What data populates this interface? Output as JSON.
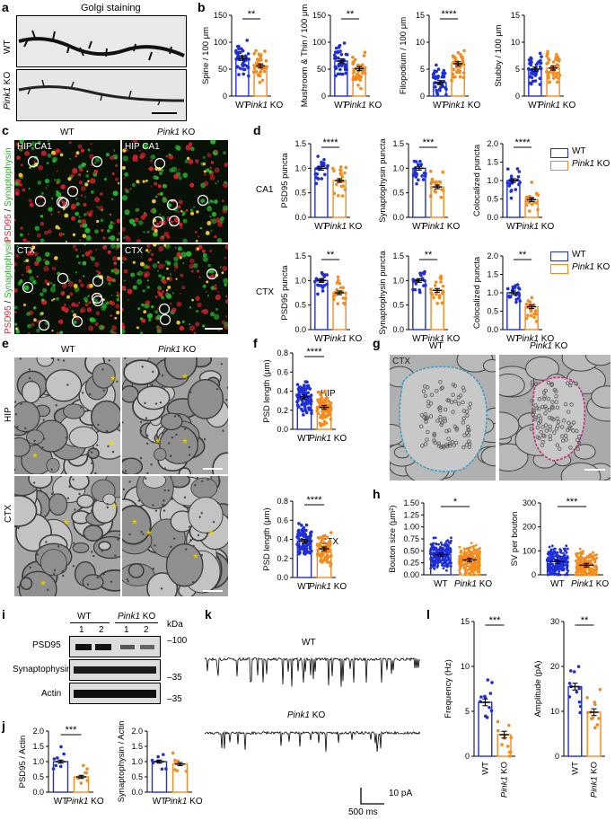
{
  "colors": {
    "wt": "#1f2fd6",
    "ko": "#f28c1e",
    "red": "#e0262e",
    "green": "#2bb02b",
    "asterisk": "#f5d800"
  },
  "panels": [
    "a",
    "b",
    "c",
    "d",
    "e",
    "f",
    "g",
    "h",
    "i",
    "j",
    "k",
    "l"
  ],
  "a": {
    "title": "Golgi staining",
    "wt": "WT",
    "ko_gene": "Pink1",
    "ko_suffix": "KO"
  },
  "c": {
    "wt": "WT",
    "ko_gene": "Pink1",
    "ko_suffix": "KO",
    "hip": "HIP CA1",
    "ctx": "CTX",
    "side_red": "PSD95",
    "side_sep": " / ",
    "side_green": "Synaptophysin"
  },
  "e": {
    "wt": "WT",
    "ko_gene": "Pink1",
    "ko_suffix": "KO",
    "hip": "HIP",
    "ctx": "CTX"
  },
  "g": {
    "wt": "WT",
    "ko_gene": "Pink1",
    "ko_suffix": "KO",
    "ctx": "CTX"
  },
  "d": {
    "row1": "CA1",
    "row2": "CTX"
  },
  "f": {
    "row1": "HIP",
    "row2": "CTX"
  },
  "i": {
    "kda": "kDa",
    "wt": "WT",
    "ko_gene": "Pink1",
    "ko_suffix": "KO",
    "lanes": [
      "1",
      "2",
      "1",
      "2"
    ],
    "rows": [
      "PSD95",
      "Synaptophysin",
      "Actin"
    ],
    "markers": [
      "100",
      "35",
      "35"
    ]
  },
  "k": {
    "wt": "WT",
    "ko_gene": "Pink1",
    "ko_suffix": "KO",
    "scale_y": "10 pA",
    "scale_x": "500 ms"
  },
  "legend": {
    "wt": "WT",
    "ko": "Pink1 KO"
  },
  "chart_data": [
    {
      "id": "b1",
      "type": "bar",
      "ylabel": "Spine / 100 μm",
      "categories": [
        "WT",
        "Pink1 KO"
      ],
      "values": [
        70,
        56
      ],
      "ylim": [
        0,
        150
      ],
      "yticks": [
        0,
        50,
        100,
        150
      ],
      "sig": "**"
    },
    {
      "id": "b2",
      "type": "bar",
      "ylabel": "Mushroom & Thin / 100 μm",
      "categories": [
        "WT",
        "Pink1 KO"
      ],
      "values": [
        65,
        51
      ],
      "ylim": [
        0,
        150
      ],
      "yticks": [
        0,
        50,
        100,
        150
      ],
      "sig": "**"
    },
    {
      "id": "b3",
      "type": "bar",
      "ylabel": "Filopodium / 100 μm",
      "categories": [
        "WT",
        "Pink1 KO"
      ],
      "values": [
        2.5,
        6.0
      ],
      "ylim": [
        0,
        15
      ],
      "yticks": [
        0,
        5,
        10,
        15
      ],
      "sig": "****"
    },
    {
      "id": "b4",
      "type": "bar",
      "ylabel": "Stubby / 100 μm",
      "categories": [
        "WT",
        "Pink1 KO"
      ],
      "values": [
        5.0,
        5.2
      ],
      "ylim": [
        0,
        15
      ],
      "yticks": [
        0,
        5,
        10,
        15
      ],
      "sig": ""
    },
    {
      "id": "d1",
      "type": "bar",
      "ylabel": "PSD95 puncta",
      "categories": [
        "WT",
        "Pink1 KO"
      ],
      "values": [
        1.0,
        0.75
      ],
      "ylim": [
        0,
        1.5
      ],
      "yticks": [
        0.0,
        0.5,
        1.0,
        1.5
      ],
      "sig": "****"
    },
    {
      "id": "d2",
      "type": "bar",
      "ylabel": "Synaptophysin puncta",
      "categories": [
        "WT",
        "Pink1 KO"
      ],
      "values": [
        1.0,
        0.62
      ],
      "ylim": [
        0,
        1.5
      ],
      "yticks": [
        0.0,
        0.5,
        1.0,
        1.5
      ],
      "sig": "***"
    },
    {
      "id": "d3",
      "type": "bar",
      "ylabel": "Colocalized puncta",
      "categories": [
        "WT",
        "Pink1 KO"
      ],
      "values": [
        1.0,
        0.48
      ],
      "ylim": [
        0,
        2.0
      ],
      "yticks": [
        0.0,
        0.5,
        1.0,
        1.5,
        2.0
      ],
      "sig": "****"
    },
    {
      "id": "d4",
      "type": "bar",
      "ylabel": "PSD95 puncta",
      "categories": [
        "WT",
        "Pink1 KO"
      ],
      "values": [
        1.0,
        0.75
      ],
      "ylim": [
        0,
        1.5
      ],
      "yticks": [
        0.0,
        0.5,
        1.0,
        1.5
      ],
      "sig": "**"
    },
    {
      "id": "d5",
      "type": "bar",
      "ylabel": "Synaptophysin puncta",
      "categories": [
        "WT",
        "Pink1 KO"
      ],
      "values": [
        1.0,
        0.8
      ],
      "ylim": [
        0,
        1.5
      ],
      "yticks": [
        0.0,
        0.5,
        1.0,
        1.5
      ],
      "sig": "**"
    },
    {
      "id": "d6",
      "type": "bar",
      "ylabel": "Colocalized puncta",
      "categories": [
        "WT",
        "Pink1 KO"
      ],
      "values": [
        1.0,
        0.62
      ],
      "ylim": [
        0,
        2.0
      ],
      "yticks": [
        0.0,
        0.5,
        1.0,
        1.5,
        2.0
      ],
      "sig": "**"
    },
    {
      "id": "f1",
      "type": "bar",
      "ylabel": "PSD length (μm)",
      "categories": [
        "WT",
        "Pink1 KO"
      ],
      "values": [
        0.34,
        0.23
      ],
      "ylim": [
        0,
        0.8
      ],
      "yticks": [
        0.0,
        0.2,
        0.4,
        0.6,
        0.8
      ],
      "sig": "****"
    },
    {
      "id": "f2",
      "type": "bar",
      "ylabel": "PSD length (μm)",
      "categories": [
        "WT",
        "Pink1 KO"
      ],
      "values": [
        0.38,
        0.3
      ],
      "ylim": [
        0,
        0.8
      ],
      "yticks": [
        0.0,
        0.2,
        0.4,
        0.6,
        0.8
      ],
      "sig": "****"
    },
    {
      "id": "h1",
      "type": "bar",
      "ylabel": "Bouton size (μm²)",
      "categories": [
        "WT",
        "Pink1 KO"
      ],
      "values": [
        0.42,
        0.31
      ],
      "ylim": [
        0,
        1.5
      ],
      "yticks": [
        0.0,
        0.25,
        0.5,
        0.75,
        1.0,
        1.25,
        1.5
      ],
      "sig": "*"
    },
    {
      "id": "h2",
      "type": "bar",
      "ylabel": "SV per bouton",
      "categories": [
        "WT",
        "Pink1 KO"
      ],
      "values": [
        55,
        40
      ],
      "ylim": [
        0,
        300
      ],
      "yticks": [
        0,
        100,
        200,
        300
      ],
      "sig": "***"
    },
    {
      "id": "j1",
      "type": "bar",
      "ylabel": "PSD95 / Actin",
      "categories": [
        "WT",
        "Pink1 KO"
      ],
      "values": [
        1.0,
        0.5
      ],
      "ylim": [
        0,
        2.0
      ],
      "yticks": [
        0.0,
        0.5,
        1.0,
        1.5,
        2.0
      ],
      "sig": "***"
    },
    {
      "id": "j2",
      "type": "bar",
      "ylabel": "Synaptophysin / Actin",
      "categories": [
        "WT",
        "Pink1 KO"
      ],
      "values": [
        1.0,
        0.92
      ],
      "ylim": [
        0,
        2.0
      ],
      "yticks": [
        0.0,
        0.5,
        1.0,
        1.5,
        2.0
      ],
      "sig": ""
    },
    {
      "id": "l1",
      "type": "bar",
      "ylabel": "Frequency (Hz)",
      "categories": [
        "WT",
        "Pink1 KO"
      ],
      "values": [
        6.0,
        2.4
      ],
      "ylim": [
        0,
        15
      ],
      "yticks": [
        0,
        5,
        10,
        15
      ],
      "sig": "***"
    },
    {
      "id": "l2",
      "type": "bar",
      "ylabel": "Amplitude (pA)",
      "categories": [
        "WT",
        "Pink1 KO"
      ],
      "values": [
        15.5,
        9.8
      ],
      "ylim": [
        0,
        30
      ],
      "yticks": [
        0,
        10,
        20,
        30
      ],
      "sig": "**"
    }
  ]
}
